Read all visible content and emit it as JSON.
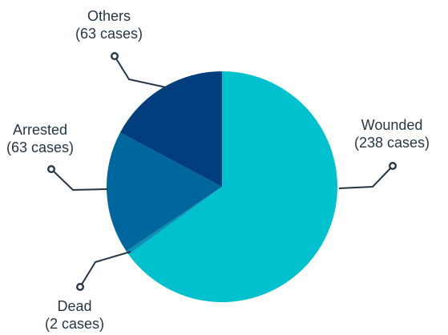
{
  "chart_data": {
    "type": "pie",
    "slices": [
      {
        "name": "Wounded",
        "value": 238,
        "label": "Wounded",
        "sublabel": "(238 cases)",
        "color": "#00C1CD"
      },
      {
        "name": "Dead",
        "value": 2,
        "label": "Dead",
        "sublabel": "(2 cases)",
        "color": "#0A8FB5"
      },
      {
        "name": "Arrested",
        "value": 63,
        "label": "Arrested",
        "sublabel": "(63 cases)",
        "color": "#00679E"
      },
      {
        "name": "Others",
        "value": 63,
        "label": "Others",
        "sublabel": "(63 cases)",
        "color": "#023E7D"
      }
    ],
    "leader_color": "#263645"
  }
}
